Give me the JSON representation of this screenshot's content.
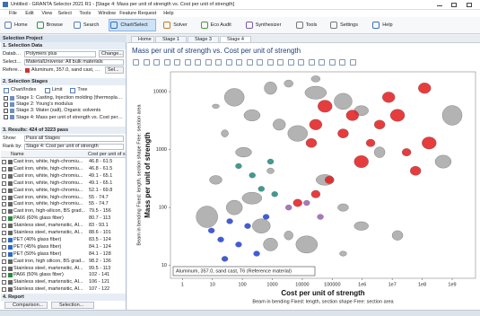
{
  "window": {
    "title": "Untitled - GRANTA Selector 2021 R1 - [Stage 4: Mass per unit of strength vs. Cost per unit of strength]"
  },
  "menu": [
    "File",
    "Edit",
    "View",
    "Select",
    "Tools",
    "Window",
    "Feature Request",
    "Help"
  ],
  "toolbar": [
    "Home",
    "Browse",
    "Search",
    "Chart/Select",
    "Solver",
    "Eco Audit",
    "Synthesizer",
    "Tools",
    "Settings",
    "Help"
  ],
  "project": {
    "title": "Selection Project",
    "data": {
      "heading": "1. Selection Data",
      "database_label": "Database:",
      "database": "Polymers plus",
      "change": "Change...",
      "select_from_label": "Select from:",
      "select_from": "MaterialUniverse: All bulk materials",
      "reference_label": "Reference:",
      "reference": "Aluminum, 357.0, sand cast, T...",
      "reference_button": "Sel..."
    },
    "stages": {
      "heading": "2. Selection Stages",
      "tools": [
        "Chart/Index",
        "Limit",
        "Tree"
      ],
      "items": [
        "Stage 1: Casting, Injection molding (thermoplastics)",
        "Stage 2: Young's modulus",
        "Stage 3: Water (salt), Organic solvents",
        "Stage 4: Mass per unit of strength vs. Cost per unit of st..."
      ]
    },
    "results": {
      "heading": "3. Results: 424 of 3223 pass",
      "show_label": "Show:",
      "show": "Pass all Stages",
      "rank_label": "Rank by:",
      "rank": "Stage 4: Cost per unit of strength",
      "columns": [
        "Name",
        "Cost per unit of s"
      ],
      "rows": [
        [
          "Cast iron, white, high-chromiu...",
          "46.8 - 61.5"
        ],
        [
          "Cast iron, white, high-chromiu...",
          "46.8 - 61.5"
        ],
        [
          "Cast iron, white, high-chromiu...",
          "49.1 - 65.1"
        ],
        [
          "Cast iron, white, high-chromiu...",
          "49.1 - 65.1"
        ],
        [
          "Cast iron, white, high-chromiu...",
          "52.1 - 69.8"
        ],
        [
          "Cast iron, white, high-chromiu...",
          "55 - 74.7"
        ],
        [
          "Cast iron, white, high-chromiu...",
          "55 - 74.7"
        ],
        [
          "Cast iron, high-silicon, BS grad...",
          "79.5 - 156"
        ],
        [
          "PA66 (60% glass fiber)",
          "80.7 - 113"
        ],
        [
          "Stainless steel, martensitic, AI...",
          "83 - 93.1"
        ],
        [
          "Stainless steel, martensitic, AI...",
          "88.6 - 101"
        ],
        [
          "PET (40% glass fiber)",
          "83.5 - 124"
        ],
        [
          "PET (45% glass fiber)",
          "84.1 - 124"
        ],
        [
          "PET (50% glass fiber)",
          "84.1 - 128"
        ],
        [
          "Cast iron, high silicon, BS grad...",
          "98.2 - 136"
        ],
        [
          "Stainless steel, martensitic, AI...",
          "99.5 - 113"
        ],
        [
          "PA66 (50% glass fiber)",
          "102 - 141"
        ],
        [
          "Stainless steel, martensitic, AI...",
          "106 - 121"
        ],
        [
          "Stainless steel, martensitic, AI...",
          "107 - 122"
        ]
      ]
    },
    "report": {
      "heading": "4. Report",
      "buttons": [
        "Comparison...",
        "Selection..."
      ]
    }
  },
  "tabs": [
    "Home",
    "Stage 1",
    "Stage 3",
    "Stage 4"
  ],
  "chart_data": {
    "type": "scatter",
    "title": "Mass per unit of strength vs. Cost per unit of strength",
    "x_label": "Cost per unit of strength",
    "x_sublabel": "Beam in bending   Fixed: length, section shape   Free: section area",
    "y_label": "Mass per unit of strength",
    "y_sublabel": "Beam in bending   Fixed: length, section shape   Free: section area",
    "annotation": "Aluminum, 357.0, sand cast, T6 (Reference material)",
    "log_x": true,
    "log_y": true,
    "grid": false,
    "xlim": [
      0.4,
      6000000000
    ],
    "ylim": [
      6,
      22000
    ],
    "xticks": [
      1,
      10,
      100,
      1000,
      10000,
      100000,
      {
        "value": 1000000,
        "label": "1e6"
      },
      {
        "value": 10000000,
        "label": "1e7"
      },
      {
        "value": 100000000,
        "label": "1e8"
      },
      {
        "value": 1000000000,
        "label": "1e9"
      }
    ],
    "yticks": [
      10,
      100,
      1000,
      10000
    ],
    "series": [
      {
        "color": "#a6a6a6",
        "x": [
          13,
          54,
          210,
          870,
          3500,
          28000,
          230000,
          930000,
          3800000,
          870,
          210,
          54,
          13,
          3500,
          14000,
          57000,
          870,
          230000,
          26,
          7000,
          110,
          1700,
          28000,
          6.6,
          430,
          930000,
          15000000,
          230000,
          1000000000,
          500000000
        ],
        "values": [
          5600,
          8000,
          3900,
          11500,
          13800,
          9600,
          6800,
          4700,
          900,
          430,
          145,
          100,
          300,
          33,
          23,
          300,
          23,
          100,
          1900,
          1900,
          900,
          2700,
          16600,
          69,
          48,
          48,
          33,
          16,
          3900,
          620
        ]
      },
      {
        "color": "#e31a1c",
        "x": [
          7000,
          20000,
          28000,
          57000,
          80000,
          230000,
          470000,
          930000,
          1900000,
          3800000,
          7600000,
          15000000,
          30000000,
          60000000,
          120000000,
          170000000,
          28000
        ],
        "values": [
          120,
          1300,
          2700,
          5600,
          300,
          1900,
          3900,
          620,
          1300,
          2700,
          8000,
          3900,
          900,
          430,
          11500,
          1300,
          170
        ]
      },
      {
        "color": "#1f3fd6",
        "x": [
          9.3,
          19,
          38,
          75,
          150,
          300,
          620,
          26
        ],
        "values": [
          40,
          28,
          58,
          23,
          48,
          16,
          69,
          13
        ]
      },
      {
        "color": "#1f8a7a",
        "x": [
          75,
          215,
          430,
          870,
          1200
        ],
        "values": [
          520,
          360,
          210,
          620,
          170
        ]
      },
      {
        "color": "#9a5fb0",
        "x": [
          3500,
          14000,
          40000
        ],
        "values": [
          100,
          120,
          69
        ]
      }
    ]
  }
}
